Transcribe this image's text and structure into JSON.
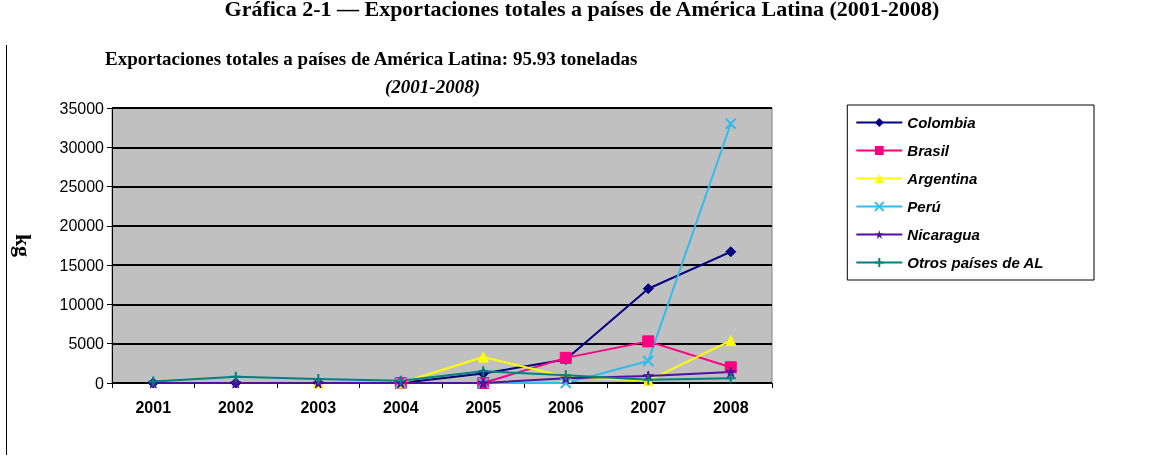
{
  "chart_data": {
    "type": "line",
    "title": "Exportaciones totales a países de América Latina: 95.93 toneladas",
    "subtitle": "(2001-2008)",
    "ylabel": "kg",
    "annotations": [
      "Gráfica 2-1 — Exportaciones totales a países de América Latina (2001-2008)"
    ],
    "categories": [
      "2001",
      "2002",
      "2003",
      "2004",
      "2005",
      "2006",
      "2007",
      "2008"
    ],
    "series": [
      {
        "name": "Colombia",
        "color": "#000080",
        "marker": "diamond",
        "values": [
          0,
          0,
          0,
          0,
          1200,
          3000,
          12000,
          16700
        ]
      },
      {
        "name": "Brasil",
        "color": "#ff0080",
        "marker": "square",
        "values": [
          null,
          null,
          null,
          0,
          0,
          3200,
          5300,
          2000
        ]
      },
      {
        "name": "Argentina",
        "color": "#ffff00",
        "marker": "triangle",
        "values": [
          null,
          null,
          0,
          0,
          3300,
          800,
          300,
          5400
        ]
      },
      {
        "name": "Perú",
        "color": "#33bbee",
        "marker": "cross",
        "values": [
          null,
          null,
          null,
          0,
          0,
          0,
          2800,
          33000
        ]
      },
      {
        "name": "Nicaragua",
        "color": "#5010a0",
        "marker": "star",
        "values": [
          0,
          0,
          0,
          0,
          0,
          600,
          900,
          1400
        ]
      },
      {
        "name": "Otros países de AL",
        "color": "#008080",
        "marker": "plus",
        "values": [
          200,
          800,
          500,
          300,
          1500,
          1000,
          400,
          600
        ]
      }
    ],
    "ylim": [
      0,
      35000
    ],
    "yticks": [
      0,
      5000,
      10000,
      15000,
      20000,
      25000,
      30000,
      35000
    ],
    "grid": "y",
    "legend": "right"
  }
}
